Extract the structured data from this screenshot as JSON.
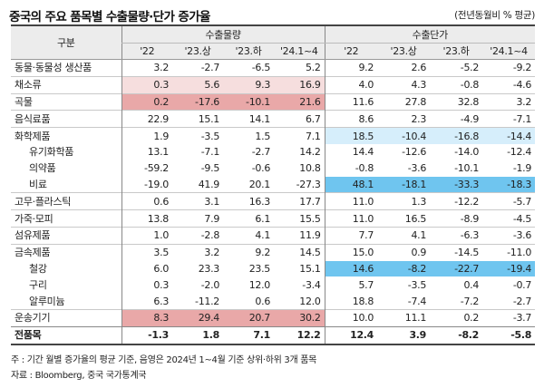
{
  "title": "중국의 주요 품목별 수출물량·단가 증가율",
  "unit": "(전년동월비 % 평균)",
  "table": {
    "header_label": "구분",
    "group_volume": "수출물량",
    "group_price": "수출단가",
    "periods": [
      "'22",
      "'23.상",
      "'23.하",
      "'24.1~4"
    ],
    "rows": [
      {
        "name": "동물·동물성 생산품",
        "level": 0,
        "vol": [
          "3.2",
          "-2.7",
          "-6.5",
          "5.2"
        ],
        "price": [
          "9.2",
          "2.6",
          "-5.2",
          "-9.2"
        ],
        "vhl": [
          0,
          0,
          0,
          0
        ],
        "phl": [
          0,
          0,
          0,
          0
        ]
      },
      {
        "name": "채소류",
        "level": 0,
        "vol": [
          "0.3",
          "5.6",
          "9.3",
          "16.9"
        ],
        "price": [
          "4.0",
          "4.3",
          "-0.8",
          "-4.6"
        ],
        "vhl": [
          1,
          1,
          1,
          1
        ],
        "phl": [
          0,
          0,
          0,
          0
        ]
      },
      {
        "name": "곡물",
        "level": 0,
        "vol": [
          "0.2",
          "-17.6",
          "-10.1",
          "21.6"
        ],
        "price": [
          "11.6",
          "27.8",
          "32.8",
          "3.2"
        ],
        "vhl": [
          2,
          2,
          2,
          2
        ],
        "phl": [
          0,
          0,
          0,
          0
        ]
      },
      {
        "name": "음식료품",
        "level": 0,
        "vol": [
          "22.9",
          "15.1",
          "14.1",
          "6.7"
        ],
        "price": [
          "8.6",
          "2.3",
          "-4.9",
          "-7.1"
        ],
        "vhl": [
          0,
          0,
          0,
          0
        ],
        "phl": [
          0,
          0,
          0,
          0
        ]
      },
      {
        "name": "화학제품",
        "level": 0,
        "vol": [
          "1.9",
          "-3.5",
          "1.5",
          "7.1"
        ],
        "price": [
          "18.5",
          "-10.4",
          "-16.8",
          "-14.4"
        ],
        "vhl": [
          0,
          0,
          0,
          0
        ],
        "phl": [
          3,
          3,
          3,
          3
        ]
      },
      {
        "name": "유기화학품",
        "level": 1,
        "vol": [
          "13.1",
          "-7.1",
          "-2.7",
          "14.2"
        ],
        "price": [
          "14.4",
          "-12.6",
          "-14.0",
          "-12.4"
        ],
        "vhl": [
          0,
          0,
          0,
          0
        ],
        "phl": [
          0,
          0,
          0,
          0
        ]
      },
      {
        "name": "의약품",
        "level": 1,
        "vol": [
          "-59.2",
          "-9.5",
          "-0.6",
          "10.8"
        ],
        "price": [
          "-0.8",
          "-3.6",
          "-10.1",
          "-1.9"
        ],
        "vhl": [
          0,
          0,
          0,
          0
        ],
        "phl": [
          0,
          0,
          0,
          0
        ]
      },
      {
        "name": "비료",
        "level": 1,
        "vol": [
          "-19.0",
          "41.9",
          "20.1",
          "-27.3"
        ],
        "price": [
          "48.1",
          "-18.1",
          "-33.3",
          "-18.3"
        ],
        "vhl": [
          0,
          0,
          0,
          0
        ],
        "phl": [
          4,
          4,
          4,
          4
        ]
      },
      {
        "name": "고무·플라스틱",
        "level": 0,
        "vol": [
          "0.6",
          "3.1",
          "16.3",
          "17.7"
        ],
        "price": [
          "11.0",
          "1.3",
          "-12.2",
          "-5.7"
        ],
        "vhl": [
          0,
          0,
          0,
          0
        ],
        "phl": [
          0,
          0,
          0,
          0
        ]
      },
      {
        "name": "가죽·모피",
        "level": 0,
        "vol": [
          "13.8",
          "7.9",
          "6.1",
          "15.5"
        ],
        "price": [
          "11.0",
          "16.5",
          "-8.9",
          "-4.5"
        ],
        "vhl": [
          0,
          0,
          0,
          0
        ],
        "phl": [
          0,
          0,
          0,
          0
        ]
      },
      {
        "name": "섬유제품",
        "level": 0,
        "vol": [
          "1.0",
          "-2.8",
          "4.1",
          "11.9"
        ],
        "price": [
          "7.7",
          "4.1",
          "-6.3",
          "-3.6"
        ],
        "vhl": [
          0,
          0,
          0,
          0
        ],
        "phl": [
          0,
          0,
          0,
          0
        ]
      },
      {
        "name": "금속제품",
        "level": 0,
        "vol": [
          "3.5",
          "3.2",
          "9.2",
          "14.5"
        ],
        "price": [
          "15.0",
          "0.9",
          "-14.5",
          "-11.0"
        ],
        "vhl": [
          0,
          0,
          0,
          0
        ],
        "phl": [
          0,
          0,
          0,
          0
        ]
      },
      {
        "name": "철강",
        "level": 1,
        "vol": [
          "6.0",
          "23.3",
          "23.5",
          "15.1"
        ],
        "price": [
          "14.6",
          "-8.2",
          "-22.7",
          "-19.4"
        ],
        "vhl": [
          0,
          0,
          0,
          0
        ],
        "phl": [
          4,
          4,
          4,
          4
        ]
      },
      {
        "name": "구리",
        "level": 1,
        "vol": [
          "0.3",
          "-2.0",
          "12.0",
          "-3.4"
        ],
        "price": [
          "5.7",
          "-3.5",
          "0.4",
          "-0.7"
        ],
        "vhl": [
          0,
          0,
          0,
          0
        ],
        "phl": [
          0,
          0,
          0,
          0
        ]
      },
      {
        "name": "알루미늄",
        "level": 1,
        "vol": [
          "6.3",
          "-11.2",
          "0.6",
          "12.0"
        ],
        "price": [
          "18.8",
          "-7.4",
          "-7.2",
          "-2.7"
        ],
        "vhl": [
          0,
          0,
          0,
          0
        ],
        "phl": [
          0,
          0,
          0,
          0
        ]
      },
      {
        "name": "운송기기",
        "level": 0,
        "vol": [
          "8.3",
          "29.4",
          "20.7",
          "30.2"
        ],
        "price": [
          "10.0",
          "11.1",
          "0.2",
          "-3.7"
        ],
        "vhl": [
          2,
          2,
          2,
          2
        ],
        "phl": [
          0,
          0,
          0,
          0
        ]
      },
      {
        "name": "전품목",
        "level": 0,
        "total": true,
        "vol": [
          "-1.3",
          "1.8",
          "7.1",
          "12.2"
        ],
        "price": [
          "12.4",
          "3.9",
          "-8.2",
          "-5.8"
        ],
        "vhl": [
          0,
          0,
          0,
          0
        ],
        "phl": [
          0,
          0,
          0,
          0
        ]
      }
    ]
  },
  "notes": {
    "note": "주 : 기간 월별 증가율의 평균 기준, 음영은 2024년 1~4월 기준 상위·하위 3개 품목",
    "source": "자료 : Bloomberg, 중국 국가통계국"
  },
  "colors": {
    "pink_light": "#f6dede",
    "pink_dark": "#e9a8a8",
    "blue_light": "#d6eefb",
    "blue_dark": "#6fc5ef"
  }
}
